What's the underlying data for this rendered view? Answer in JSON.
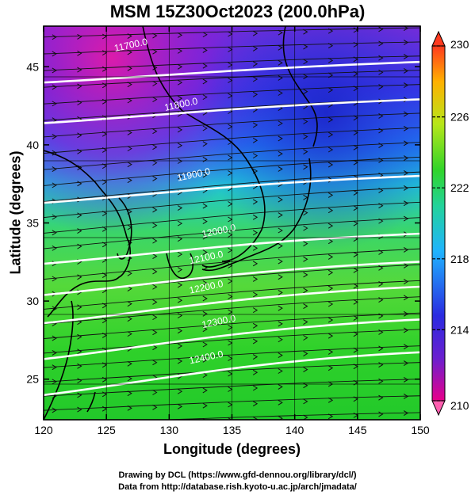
{
  "title": "MSM 15Z30Oct2023 (200.0hPa)",
  "xlabel": "Longitude (degrees)",
  "ylabel": "Latitude  (degrees)",
  "credits": [
    "Drawing by DCL (https://www.gfd-dennou.org/library/dcl/)",
    "Data from http://database.rish.kyoto-u.ac.jp/arch/jmadata/"
  ],
  "map": {
    "lon_range": [
      120,
      150
    ],
    "lat_range": [
      22.4,
      47.6
    ],
    "lon_ticks": [
      "120",
      "125",
      "130",
      "135",
      "140",
      "145",
      "150"
    ],
    "lat_ticks": [
      "25",
      "30",
      "35",
      "40",
      "45"
    ],
    "contour_labels": [
      "11700.0",
      "11800.0",
      "11900.0",
      "12000.0",
      "12100.0",
      "12200.0",
      "12300.0",
      "12400.0"
    ],
    "field": "temperature shading with geopotential height contours and wind streamlines"
  },
  "colorbar": {
    "ticks": [
      "230",
      "226",
      "222",
      "218",
      "214",
      "210"
    ],
    "colors": [
      "#e8008a",
      "#6a1fcf",
      "#2a2be0",
      "#1fb3ff",
      "#22d39a",
      "#31d42a",
      "#b7e619",
      "#ffb000",
      "#ff3a1f"
    ]
  }
}
